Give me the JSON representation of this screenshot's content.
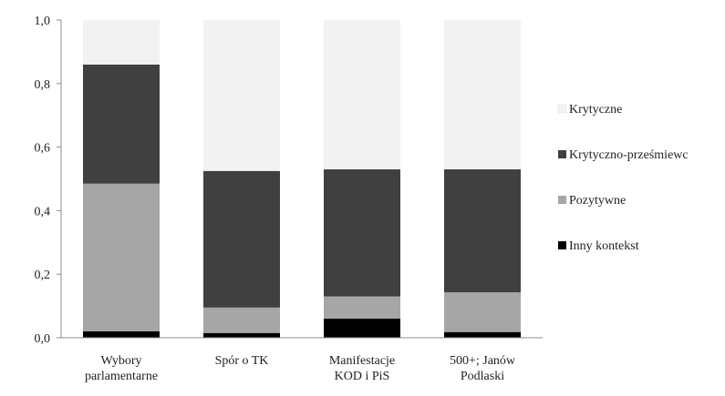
{
  "chart_data": {
    "type": "bar",
    "stacked": true,
    "categories": [
      [
        "Wybory",
        "parlamentarne"
      ],
      [
        "Spór o TK"
      ],
      [
        "Manifestacje",
        "KOD i PiS"
      ],
      [
        "500+; Janów",
        "Podlaski"
      ]
    ],
    "series": [
      {
        "name": "Inny kontekst",
        "color": "#000000",
        "values": [
          0.02,
          0.015,
          0.06,
          0.018
        ]
      },
      {
        "name": "Pozytywne",
        "color": "#a6a6a6",
        "values": [
          0.465,
          0.08,
          0.07,
          0.125
        ]
      },
      {
        "name": "Krytyczno-prześmiewc",
        "color": "#404040",
        "values": [
          0.375,
          0.43,
          0.4,
          0.387
        ]
      },
      {
        "name": "Krytyczne",
        "color": "#f2f2f2",
        "values": [
          0.14,
          0.475,
          0.47,
          0.47
        ]
      }
    ],
    "legend_order": [
      "Krytyczne",
      "Krytyczno-prześmiewc",
      "Pozytywne",
      "Inny kontekst"
    ],
    "ylim": [
      0,
      1
    ],
    "yticks": [
      "0,0",
      "0,2",
      "0,4",
      "0,6",
      "0,8",
      "1,0"
    ],
    "ytick_values": [
      0,
      0.2,
      0.4,
      0.6,
      0.8,
      1.0
    ],
    "legend_position": "right",
    "grid": false,
    "title": "",
    "xlabel": "",
    "ylabel": ""
  }
}
